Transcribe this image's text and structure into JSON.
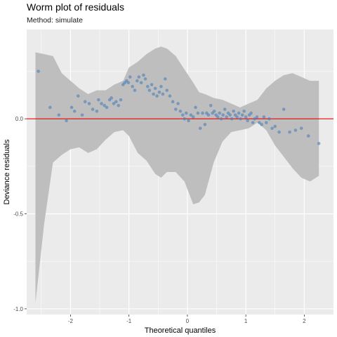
{
  "chart_data": {
    "type": "scatter",
    "title": "Worm plot of residuals",
    "subtitle": "Method: simulate",
    "xlabel": "Theoretical quantiles",
    "ylabel": "Deviance residuals",
    "xlim": [
      -2.75,
      2.5
    ],
    "ylim": [
      -1.03,
      0.47
    ],
    "x_ticks": [
      -2,
      -1,
      0,
      1,
      2
    ],
    "x_tick_labels": [
      "-2",
      "-1",
      "0",
      "1",
      "2"
    ],
    "y_ticks": [
      -1.0,
      -0.5,
      0.0
    ],
    "y_tick_labels": [
      "-1.0",
      "-0.5",
      "0.0"
    ],
    "grid": true,
    "reference_line": {
      "y": 0.0,
      "color": "#e41a1c"
    },
    "colors": {
      "panel": "#ebebeb",
      "grid": "#ffffff",
      "band": "#bebebe",
      "points": "#4a7fb9"
    },
    "band": {
      "x": [
        -2.6,
        -2.45,
        -2.3,
        -2.15,
        -2.0,
        -1.85,
        -1.7,
        -1.55,
        -1.4,
        -1.25,
        -1.1,
        -1.0,
        -0.85,
        -0.7,
        -0.55,
        -0.45,
        -0.35,
        -0.2,
        -0.05,
        0.1,
        0.2,
        0.3,
        0.45,
        0.6,
        0.75,
        0.9,
        1.05,
        1.2,
        1.35,
        1.5,
        1.65,
        1.8,
        1.95,
        2.1,
        2.25
      ],
      "upper": [
        0.35,
        0.34,
        0.33,
        0.24,
        0.2,
        0.16,
        0.13,
        0.15,
        0.15,
        0.18,
        0.2,
        0.27,
        0.3,
        0.34,
        0.37,
        0.38,
        0.37,
        0.33,
        0.26,
        0.19,
        0.14,
        0.13,
        0.11,
        0.1,
        0.08,
        0.06,
        0.08,
        0.1,
        0.16,
        0.2,
        0.23,
        0.24,
        0.22,
        0.2,
        0.2
      ],
      "lower": [
        -0.97,
        -0.55,
        -0.23,
        -0.19,
        -0.16,
        -0.15,
        -0.18,
        -0.16,
        -0.11,
        -0.07,
        -0.06,
        -0.09,
        -0.18,
        -0.22,
        -0.29,
        -0.31,
        -0.28,
        -0.28,
        -0.33,
        -0.45,
        -0.44,
        -0.4,
        -0.23,
        -0.12,
        -0.07,
        -0.06,
        -0.05,
        -0.02,
        -0.06,
        -0.14,
        -0.2,
        -0.26,
        -0.31,
        -0.33,
        -0.3
      ]
    },
    "points": {
      "x": [
        -2.55,
        -2.35,
        -2.2,
        -2.07,
        -1.98,
        -1.93,
        -1.87,
        -1.8,
        -1.75,
        -1.68,
        -1.62,
        -1.55,
        -1.52,
        -1.47,
        -1.42,
        -1.38,
        -1.33,
        -1.3,
        -1.26,
        -1.22,
        -1.18,
        -1.14,
        -1.1,
        -1.07,
        -1.04,
        -1.01,
        -0.98,
        -0.94,
        -0.9,
        -0.86,
        -0.83,
        -0.79,
        -0.75,
        -0.72,
        -0.68,
        -0.65,
        -0.61,
        -0.58,
        -0.55,
        -0.52,
        -0.48,
        -0.45,
        -0.42,
        -0.38,
        -0.35,
        -0.3,
        -0.25,
        -0.2,
        -0.16,
        -0.12,
        -0.08,
        -0.05,
        -0.02,
        0.02,
        0.06,
        0.1,
        0.14,
        0.18,
        0.22,
        0.26,
        0.3,
        0.33,
        0.36,
        0.4,
        0.43,
        0.46,
        0.49,
        0.52,
        0.55,
        0.58,
        0.61,
        0.64,
        0.67,
        0.7,
        0.73,
        0.76,
        0.79,
        0.82,
        0.85,
        0.88,
        0.91,
        0.94,
        0.97,
        1.0,
        1.03,
        1.06,
        1.09,
        1.12,
        1.15,
        1.19,
        1.23,
        1.27,
        1.31,
        1.35,
        1.4,
        1.45,
        1.5,
        1.57,
        1.65,
        1.75,
        1.85,
        1.95,
        2.07,
        2.25
      ],
      "y": [
        0.25,
        0.06,
        0.02,
        -0.01,
        0.06,
        0.04,
        0.12,
        0.02,
        0.09,
        0.08,
        0.05,
        0.04,
        0.1,
        0.08,
        0.07,
        0.06,
        0.1,
        0.11,
        0.08,
        0.09,
        0.07,
        0.1,
        0.18,
        0.19,
        0.2,
        0.19,
        0.22,
        0.17,
        0.15,
        0.2,
        0.22,
        0.19,
        0.23,
        0.21,
        0.17,
        0.15,
        0.18,
        0.13,
        0.16,
        0.12,
        0.14,
        0.17,
        0.13,
        0.21,
        0.15,
        0.12,
        0.09,
        0.05,
        0.08,
        0.04,
        0.02,
        0.0,
        0.03,
        -0.01,
        0.02,
        0.01,
        0.06,
        0.03,
        -0.05,
        0.03,
        -0.03,
        0.03,
        0.02,
        0.07,
        0.03,
        0.04,
        0.02,
        0.01,
        0.03,
        0.0,
        0.02,
        0.05,
        0.01,
        0.03,
        0.02,
        0.0,
        0.04,
        0.02,
        0.01,
        0.03,
        0.0,
        0.02,
        0.04,
        0.01,
        -0.01,
        0.02,
        0.03,
        -0.02,
        0.0,
        0.01,
        -0.02,
        -0.03,
        0.01,
        -0.02,
        0.0,
        -0.05,
        -0.04,
        -0.07,
        0.05,
        -0.07,
        -0.06,
        -0.05,
        -0.09,
        -0.13
      ]
    }
  }
}
